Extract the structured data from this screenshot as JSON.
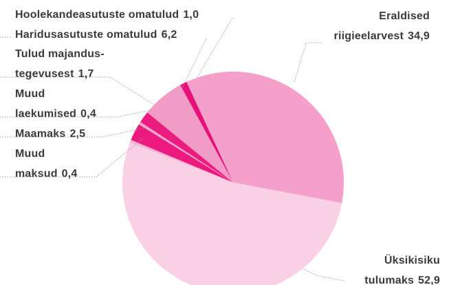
{
  "chart_data": {
    "type": "pie",
    "categories": [
      "Eraldised\nriigieelarvest",
      "Üksikisiku\ntulumaks",
      "Muud\nmaksud",
      "Maamaks",
      "Muud\nlaekumised",
      "Tulud majandus-\ntegevusest",
      "Haridusasutuste omatulud",
      "Hoolekandeasutuste omatulud"
    ],
    "values": [
      34.9,
      52.9,
      0.4,
      2.5,
      0.4,
      1.7,
      6.2,
      1.0
    ],
    "value_labels": [
      "34,9",
      "52,9",
      "0,4",
      "2,5",
      "0,4",
      "1,7",
      "6,2",
      "1,0"
    ],
    "colors": [
      "#f4a0cb",
      "#f9d0e4",
      "#f6b4d4",
      "#ec1a7f",
      "#f4a8cd",
      "#ea1c7f",
      "#f29bc6",
      "#e6127a"
    ]
  }
}
